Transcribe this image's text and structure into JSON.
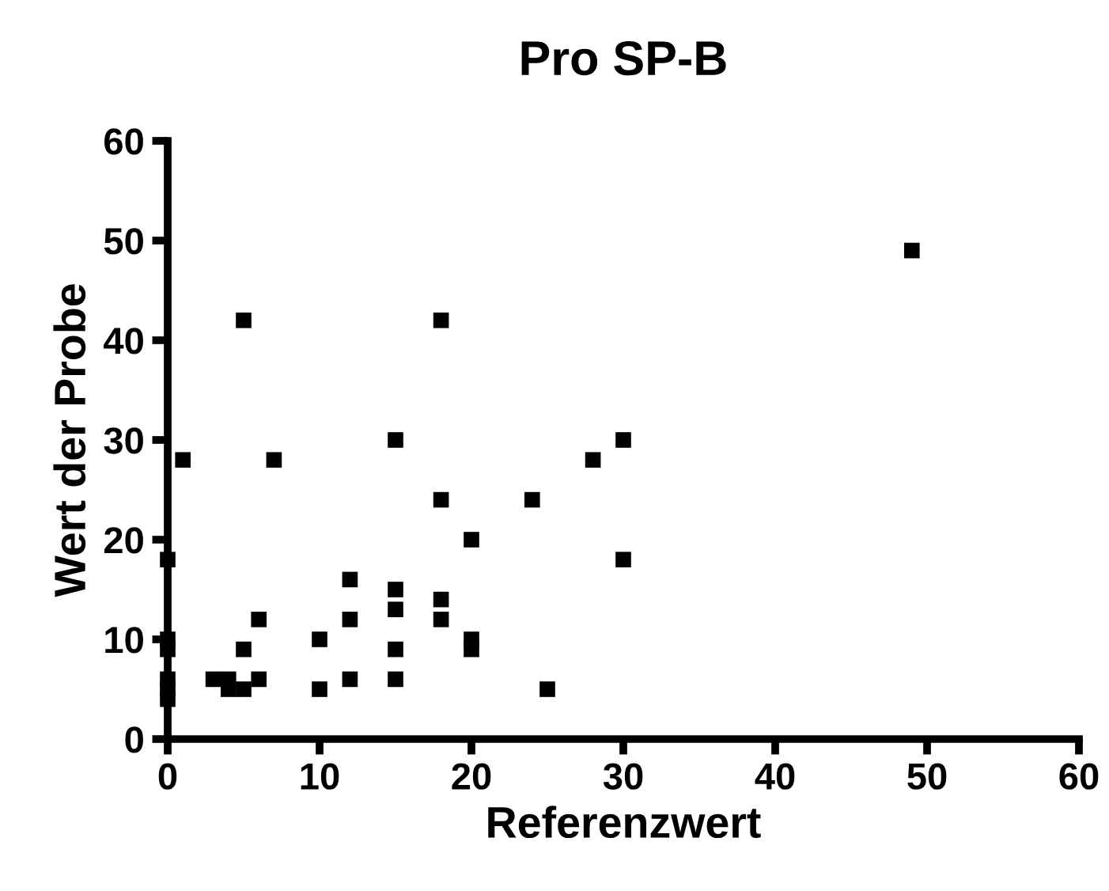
{
  "chart_data": {
    "type": "scatter",
    "title": "Pro SP-B",
    "xlabel": "Referenzwert",
    "ylabel": "Wert der Probe",
    "x": [
      0,
      0,
      0,
      0,
      0,
      0,
      1,
      3,
      4,
      4,
      5,
      5,
      5,
      6,
      6,
      7,
      10,
      10,
      12,
      12,
      12,
      15,
      15,
      15,
      15,
      15,
      18,
      18,
      18,
      18,
      20,
      20,
      20,
      24,
      25,
      28,
      30,
      30,
      49
    ],
    "values": [
      18,
      10,
      9,
      6,
      5,
      4,
      28,
      6,
      6,
      5,
      5,
      9,
      42,
      12,
      6,
      28,
      10,
      5,
      16,
      12,
      6,
      30,
      15,
      13,
      9,
      6,
      42,
      24,
      14,
      12,
      20,
      10,
      9,
      24,
      5,
      28,
      30,
      18,
      49
    ],
    "color": "#000000",
    "marker": "square",
    "xlim": [
      0,
      60
    ],
    "ylim": [
      0,
      60
    ],
    "xticks": [
      0,
      10,
      20,
      30,
      40,
      50,
      60
    ],
    "yticks": [
      0,
      10,
      20,
      30,
      40,
      50,
      60
    ],
    "grid": false,
    "legend": false
  }
}
